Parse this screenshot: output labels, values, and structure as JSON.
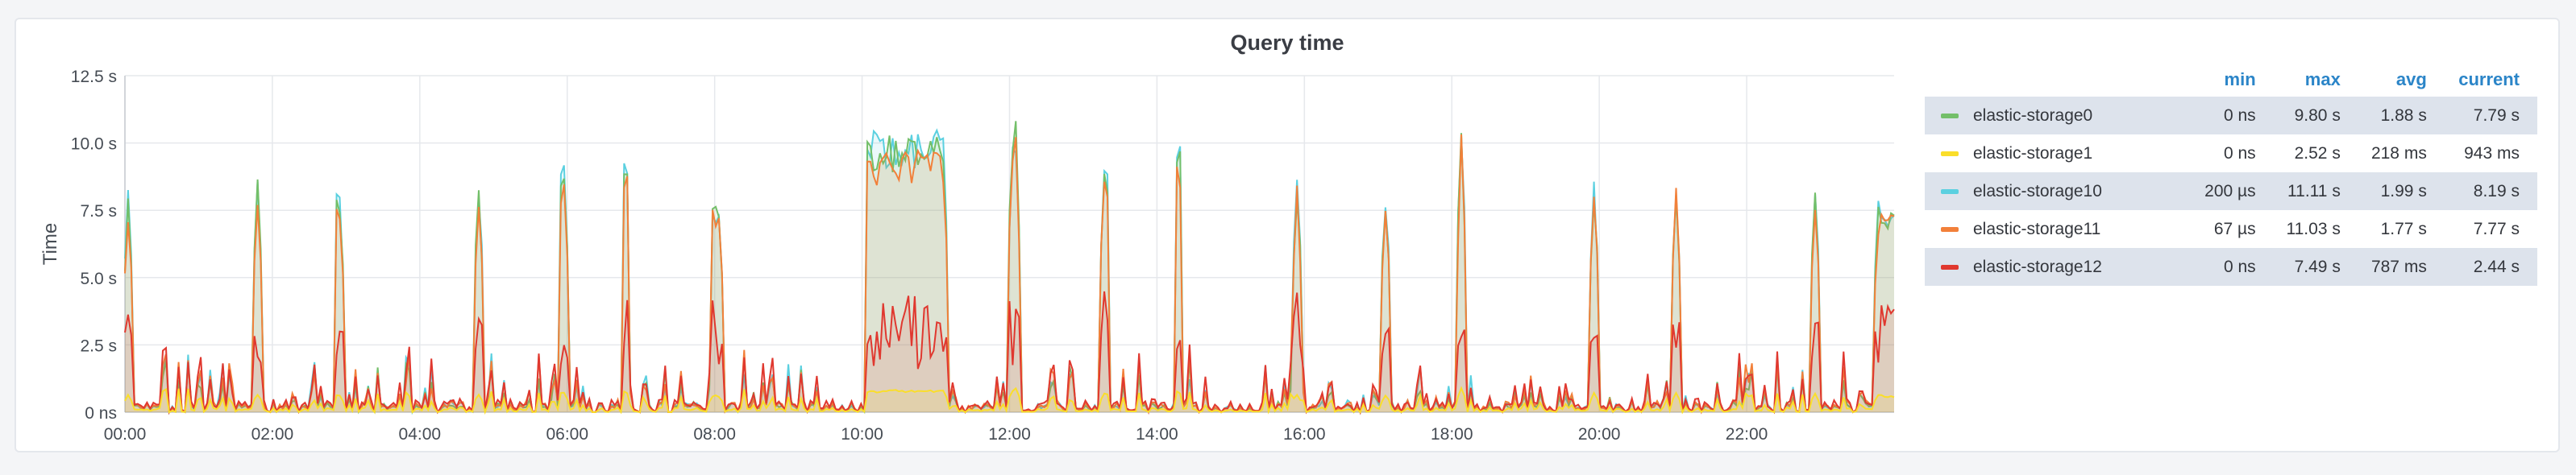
{
  "panel": {
    "title": "Query time"
  },
  "chart_data": {
    "type": "area",
    "title": "Query time",
    "ylabel": "Time",
    "xlabel": "",
    "ylim": [
      0,
      12.5
    ],
    "y_unit": "s",
    "y_ticks": [
      {
        "v": 0,
        "label": "0 ns"
      },
      {
        "v": 2.5,
        "label": "2.5 s"
      },
      {
        "v": 5,
        "label": "5.0 s"
      },
      {
        "v": 7.5,
        "label": "7.5 s"
      },
      {
        "v": 10,
        "label": "10.0 s"
      },
      {
        "v": 12.5,
        "label": "12.5 s"
      }
    ],
    "x_ticks": [
      {
        "v": 0,
        "label": "00:00"
      },
      {
        "v": 2,
        "label": "02:00"
      },
      {
        "v": 4,
        "label": "04:00"
      },
      {
        "v": 6,
        "label": "06:00"
      },
      {
        "v": 8,
        "label": "08:00"
      },
      {
        "v": 10,
        "label": "10:00"
      },
      {
        "v": 12,
        "label": "12:00"
      },
      {
        "v": 14,
        "label": "14:00"
      },
      {
        "v": 16,
        "label": "16:00"
      },
      {
        "v": 18,
        "label": "18:00"
      },
      {
        "v": 20,
        "label": "20:00"
      },
      {
        "v": 22,
        "label": "22:00"
      }
    ],
    "xlim": [
      0,
      24
    ],
    "grid": true,
    "legend_position": "right",
    "series_style": "stacked-fill-overlap",
    "bursts": [
      {
        "t": 0.02,
        "w": 0.08,
        "peak": 8.3
      },
      {
        "t": 1.75,
        "w": 0.1,
        "peak": 8.8
      },
      {
        "t": 2.85,
        "w": 0.12,
        "peak": 8.1
      },
      {
        "t": 4.75,
        "w": 0.1,
        "peak": 9.0
      },
      {
        "t": 5.9,
        "w": 0.1,
        "peak": 9.1
      },
      {
        "t": 6.75,
        "w": 0.1,
        "peak": 9.5
      },
      {
        "t": 7.95,
        "w": 0.15,
        "peak": 8.0
      },
      {
        "t": 10.05,
        "w": 1.1,
        "peak": 10.3
      },
      {
        "t": 12.0,
        "w": 0.15,
        "peak": 10.9
      },
      {
        "t": 13.25,
        "w": 0.12,
        "peak": 9.4
      },
      {
        "t": 14.25,
        "w": 0.1,
        "peak": 9.8
      },
      {
        "t": 15.85,
        "w": 0.1,
        "peak": 9.1
      },
      {
        "t": 17.05,
        "w": 0.1,
        "peak": 8.6
      },
      {
        "t": 18.1,
        "w": 0.08,
        "peak": 11.0
      },
      {
        "t": 19.9,
        "w": 0.1,
        "peak": 9.0
      },
      {
        "t": 21.0,
        "w": 0.1,
        "peak": 8.9
      },
      {
        "t": 22.9,
        "w": 0.08,
        "peak": 8.9
      },
      {
        "t": 23.75,
        "w": 0.3,
        "peak": 7.8
      }
    ],
    "series": [
      {
        "name": "elastic-storage0",
        "color": "#73bf69",
        "min": "0 ns",
        "max": "9.80 s",
        "avg": "1.88 s",
        "current": "7.79 s"
      },
      {
        "name": "elastic-storage1",
        "color": "#fade2a",
        "min": "0 ns",
        "max": "2.52 s",
        "avg": "218 ms",
        "current": "943 ms"
      },
      {
        "name": "elastic-storage10",
        "color": "#5bd0e0",
        "min": "200 µs",
        "max": "11.11 s",
        "avg": "1.99 s",
        "current": "8.19 s"
      },
      {
        "name": "elastic-storage11",
        "color": "#f2803a",
        "min": "67 µs",
        "max": "11.03 s",
        "avg": "1.77 s",
        "current": "7.77 s"
      },
      {
        "name": "elastic-storage12",
        "color": "#e0382f",
        "min": "0 ns",
        "max": "7.49 s",
        "avg": "787 ms",
        "current": "2.44 s"
      }
    ]
  },
  "legend": {
    "columns": [
      "min",
      "max",
      "avg",
      "current"
    ]
  }
}
